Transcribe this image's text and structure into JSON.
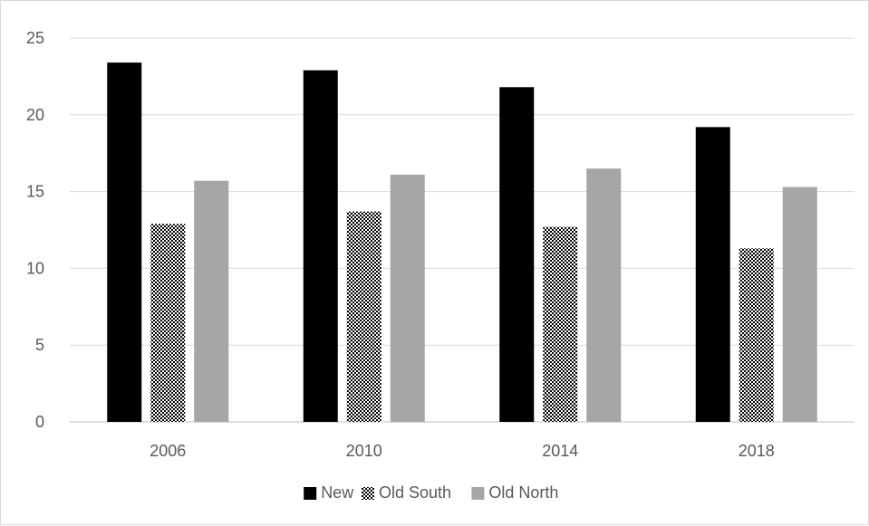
{
  "chart_data": {
    "type": "bar",
    "categories": [
      "2006",
      "2010",
      "2014",
      "2018"
    ],
    "series": [
      {
        "name": "New",
        "values": [
          23.4,
          22.9,
          21.8,
          19.2
        ],
        "color": "#000000",
        "pattern": "solid"
      },
      {
        "name": "Old South",
        "values": [
          12.9,
          13.7,
          12.7,
          11.3
        ],
        "color": "#000000",
        "pattern": "checker"
      },
      {
        "name": "Old North",
        "values": [
          15.7,
          16.1,
          16.5,
          15.3
        ],
        "color": "#a6a6a6",
        "pattern": "solid"
      }
    ],
    "ylim": [
      0,
      25
    ],
    "yticks": [
      "0",
      "5",
      "10",
      "15",
      "20",
      "25"
    ],
    "grid": true,
    "legend": "bottom-center"
  }
}
